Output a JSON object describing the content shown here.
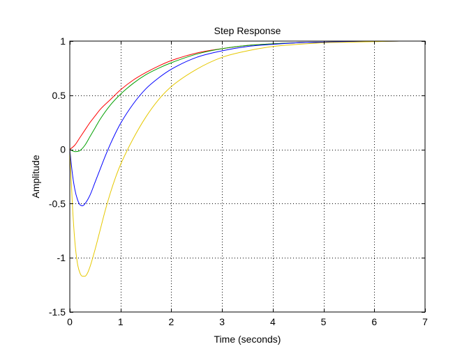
{
  "chart_data": {
    "type": "line",
    "title": "Step Response",
    "xlabel": "Time (seconds)",
    "ylabel": "Amplitude",
    "xlim": [
      0,
      7
    ],
    "ylim": [
      -1.5,
      1
    ],
    "xticks": [
      0,
      1,
      2,
      3,
      4,
      5,
      6,
      7
    ],
    "yticks": [
      -1.5,
      -1,
      -0.5,
      0,
      0.5,
      1
    ],
    "xtick_labels": [
      "0",
      "1",
      "2",
      "3",
      "4",
      "5",
      "6",
      "7"
    ],
    "ytick_labels": [
      "-1.5",
      "-1",
      "-0.5",
      "0",
      "0.5",
      "1"
    ],
    "grid": true,
    "grid_style": "dotted",
    "legend": false,
    "colors": {
      "background": "#ffffff",
      "axes": "#000000",
      "grid": "#000000"
    },
    "series": [
      {
        "color": "#ff0000",
        "x": [
          0,
          0.1,
          0.2,
          0.3,
          0.4,
          0.5,
          0.6,
          0.8,
          1.0,
          1.25,
          1.5,
          1.75,
          2.0,
          2.5,
          3.0,
          3.5,
          4.0,
          4.5,
          5.0,
          5.5,
          6.0,
          6.5,
          7.0
        ],
        "y": [
          0,
          0.04,
          0.11,
          0.18,
          0.25,
          0.31,
          0.37,
          0.46,
          0.55,
          0.64,
          0.71,
          0.77,
          0.82,
          0.89,
          0.93,
          0.96,
          0.975,
          0.985,
          0.99,
          0.995,
          0.998,
          1.0,
          1.0
        ]
      },
      {
        "color": "#00a000",
        "x": [
          0,
          0.1,
          0.2,
          0.3,
          0.4,
          0.5,
          0.6,
          0.8,
          1.0,
          1.25,
          1.5,
          1.75,
          2.0,
          2.5,
          3.0,
          3.5,
          4.0,
          4.5,
          5.0,
          5.5,
          6.0,
          6.5,
          7.0
        ],
        "y": [
          0,
          -0.02,
          -0.01,
          0.04,
          0.12,
          0.2,
          0.28,
          0.41,
          0.51,
          0.61,
          0.69,
          0.75,
          0.8,
          0.88,
          0.93,
          0.96,
          0.975,
          0.985,
          0.99,
          0.995,
          0.998,
          1.0,
          1.0
        ]
      },
      {
        "color": "#0000ff",
        "x": [
          0,
          0.05,
          0.1,
          0.15,
          0.2,
          0.25,
          0.3,
          0.4,
          0.5,
          0.6,
          0.7,
          0.8,
          0.9,
          1.0,
          1.25,
          1.5,
          1.75,
          2.0,
          2.5,
          3.0,
          3.5,
          4.0,
          4.5,
          5.0,
          5.5,
          6.0,
          6.5,
          7.0
        ],
        "y": [
          0,
          -0.22,
          -0.37,
          -0.46,
          -0.51,
          -0.52,
          -0.5,
          -0.42,
          -0.3,
          -0.18,
          -0.06,
          0.05,
          0.15,
          0.24,
          0.42,
          0.56,
          0.66,
          0.74,
          0.85,
          0.91,
          0.95,
          0.97,
          0.985,
          0.99,
          0.995,
          0.998,
          1.0,
          1.0
        ]
      },
      {
        "color": "#e6c800",
        "x": [
          0,
          0.05,
          0.1,
          0.15,
          0.2,
          0.25,
          0.3,
          0.35,
          0.4,
          0.5,
          0.6,
          0.7,
          0.8,
          0.9,
          1.0,
          1.25,
          1.5,
          1.75,
          2.0,
          2.5,
          3.0,
          3.5,
          4.0,
          4.5,
          5.0,
          5.5,
          6.0,
          6.5,
          7.0
        ],
        "y": [
          0,
          -0.5,
          -0.85,
          -1.05,
          -1.14,
          -1.17,
          -1.17,
          -1.14,
          -1.08,
          -0.92,
          -0.74,
          -0.56,
          -0.4,
          -0.26,
          -0.14,
          0.1,
          0.3,
          0.46,
          0.58,
          0.74,
          0.85,
          0.91,
          0.95,
          0.97,
          0.985,
          0.99,
          0.995,
          1.0,
          1.0
        ]
      }
    ]
  }
}
